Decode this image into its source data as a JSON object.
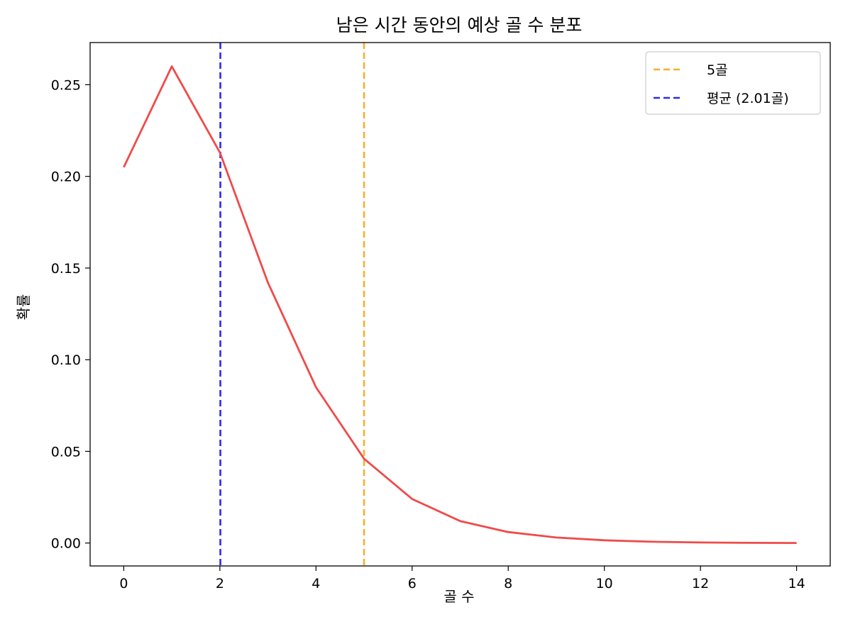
{
  "chart_data": {
    "type": "line",
    "title": "남은 시간 동안의 예상 골 수 분포",
    "xlabel": "골 수",
    "ylabel": "확률",
    "xlim": [
      -0.7,
      14.7
    ],
    "ylim": [
      -0.0125,
      0.273
    ],
    "xticks": [
      0,
      2,
      4,
      6,
      8,
      10,
      12,
      14
    ],
    "xtick_labels": [
      "0",
      "2",
      "4",
      "6",
      "8",
      "10",
      "12",
      "14"
    ],
    "yticks": [
      0.0,
      0.05,
      0.1,
      0.15,
      0.2,
      0.25
    ],
    "ytick_labels": [
      "0.00",
      "0.05",
      "0.10",
      "0.15",
      "0.20",
      "0.25"
    ],
    "grid": false,
    "legend_position": "top-right",
    "series": [
      {
        "type": "line",
        "color": "#f04a4a",
        "x": [
          0,
          1,
          2,
          3,
          4,
          5,
          6,
          7,
          8,
          9,
          10,
          11,
          12,
          13,
          14
        ],
        "values": [
          0.205,
          0.26,
          0.213,
          0.142,
          0.085,
          0.046,
          0.024,
          0.012,
          0.006,
          0.003,
          0.0015,
          0.0007,
          0.0003,
          0.0001,
          5e-05
        ]
      }
    ],
    "reference_lines": [
      {
        "name": "5골",
        "x": 5,
        "color": "#f5b02e",
        "style": "dashed"
      },
      {
        "name": "평균 (2.01골)",
        "x": 2.01,
        "color": "#2b2bf0",
        "style": "dashed"
      }
    ]
  }
}
